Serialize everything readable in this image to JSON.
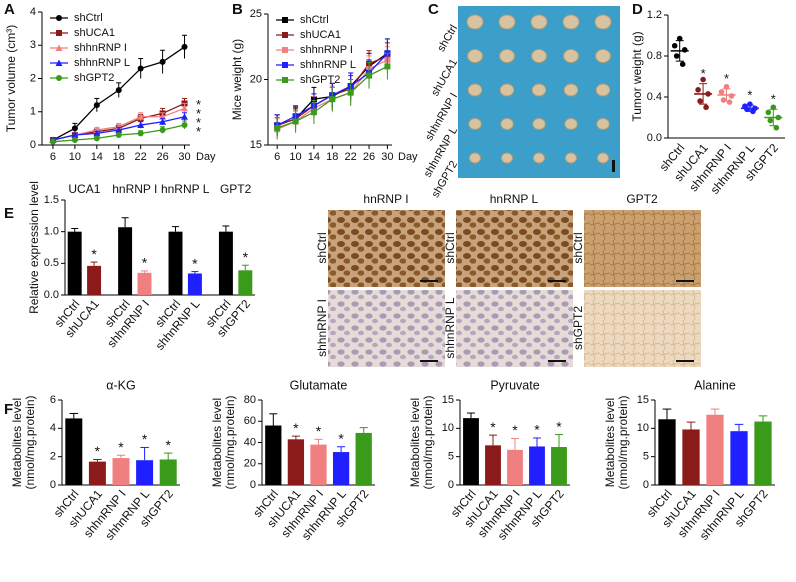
{
  "chart_data": [
    {
      "type": "line",
      "panel": "A",
      "ylabel": "Tumor volume (cm³)",
      "xlabel": "Day",
      "x": [
        6,
        10,
        14,
        18,
        22,
        26,
        30
      ],
      "xlim": [
        4,
        31
      ],
      "xticks": [
        6,
        10,
        14,
        18,
        22,
        26,
        30
      ],
      "ylim": [
        0,
        4
      ],
      "yticks": [
        0,
        1,
        2,
        3,
        4
      ],
      "series": [
        {
          "name": "shCtrl",
          "color": "#000000",
          "marker": "circle",
          "values": [
            0.15,
            0.5,
            1.2,
            1.65,
            2.3,
            2.5,
            2.95
          ],
          "errors": [
            0.05,
            0.15,
            0.2,
            0.22,
            0.3,
            0.35,
            0.35
          ]
        },
        {
          "name": "shUCA1",
          "color": "#8b1a1a",
          "marker": "square",
          "values": [
            0.15,
            0.3,
            0.4,
            0.5,
            0.8,
            0.95,
            1.25
          ],
          "errors": [
            0.03,
            0.06,
            0.08,
            0.1,
            0.12,
            0.15,
            0.15
          ]
        },
        {
          "name": "shhnRNP I",
          "color": "#f08080",
          "marker": "triangle",
          "values": [
            0.15,
            0.3,
            0.45,
            0.55,
            0.85,
            0.85,
            1.1
          ],
          "errors": [
            0.03,
            0.06,
            0.08,
            0.1,
            0.12,
            0.12,
            0.15
          ]
        },
        {
          "name": "shhnRNP L",
          "color": "#1f1fff",
          "marker": "triangle",
          "values": [
            0.15,
            0.3,
            0.35,
            0.45,
            0.6,
            0.7,
            0.85
          ],
          "errors": [
            0.03,
            0.05,
            0.06,
            0.08,
            0.1,
            0.1,
            0.12
          ]
        },
        {
          "name": "shGPT2",
          "color": "#3a9a1a",
          "marker": "circle",
          "values": [
            0.1,
            0.15,
            0.2,
            0.3,
            0.35,
            0.45,
            0.6
          ],
          "errors": [
            0.02,
            0.04,
            0.05,
            0.06,
            0.08,
            0.1,
            0.12
          ]
        }
      ],
      "annotations": [
        "*",
        "*",
        "*",
        "*"
      ]
    },
    {
      "type": "line",
      "panel": "B",
      "ylabel": "Mice weight (g)",
      "xlabel": "Day",
      "x": [
        6,
        10,
        14,
        18,
        22,
        26,
        30
      ],
      "xlim": [
        4,
        31
      ],
      "xticks": [
        6,
        10,
        14,
        18,
        22,
        26,
        30
      ],
      "ylim": [
        15,
        25
      ],
      "yticks": [
        15,
        20,
        25
      ],
      "series": [
        {
          "name": "shCtrl",
          "color": "#000000",
          "marker": "square",
          "values": [
            16.5,
            17,
            18.5,
            18.7,
            19.5,
            21,
            22
          ],
          "errors": [
            0.8,
            0.9,
            0.9,
            1,
            1,
            1,
            1.1
          ]
        },
        {
          "name": "shUCA1",
          "color": "#8b1a1a",
          "marker": "square",
          "values": [
            16.5,
            17,
            18,
            18.8,
            19.3,
            21.2,
            21.8
          ],
          "errors": [
            0.8,
            0.8,
            0.9,
            0.9,
            1,
            1,
            1
          ]
        },
        {
          "name": "shhnRNP I",
          "color": "#f08080",
          "marker": "square",
          "values": [
            16.2,
            16.8,
            17.8,
            18.5,
            19,
            20.8,
            21.5
          ],
          "errors": [
            0.8,
            0.9,
            0.9,
            1,
            1,
            1,
            1
          ]
        },
        {
          "name": "shhnRNP L",
          "color": "#1f1fff",
          "marker": "square",
          "values": [
            16.5,
            17.2,
            18,
            18.8,
            19.5,
            20.5,
            22
          ],
          "errors": [
            0.8,
            0.8,
            0.9,
            0.9,
            1,
            1,
            1.1
          ]
        },
        {
          "name": "shGPT2",
          "color": "#3a9a1a",
          "marker": "square",
          "values": [
            16.3,
            16.8,
            17.5,
            18.5,
            19,
            20.3,
            21
          ],
          "errors": [
            0.8,
            0.8,
            0.9,
            0.9,
            1,
            1,
            1
          ]
        }
      ]
    },
    {
      "type": "dot",
      "panel": "D",
      "ylabel": "Tumor weight (g)",
      "categories": [
        "shCtrl",
        "shUCA1",
        "shhnRNP I",
        "shhnRNP L",
        "shGPT2"
      ],
      "colors": [
        "#000000",
        "#8b1a1a",
        "#f08080",
        "#1f1fff",
        "#3a9a1a"
      ],
      "values": [
        0.85,
        0.43,
        0.42,
        0.29,
        0.2
      ],
      "errors": [
        0.1,
        0.1,
        0.06,
        0.03,
        0.08
      ],
      "points": [
        [
          0.97,
          0.9,
          0.86,
          0.8,
          0.72
        ],
        [
          0.57,
          0.47,
          0.43,
          0.36,
          0.3
        ],
        [
          0.5,
          0.45,
          0.41,
          0.37,
          0.35
        ],
        [
          0.33,
          0.31,
          0.29,
          0.28,
          0.26
        ],
        [
          0.3,
          0.25,
          0.2,
          0.17,
          0.1
        ]
      ],
      "significance": [
        null,
        "*",
        "*",
        "*",
        "*"
      ],
      "ylim": [
        0,
        1.2
      ],
      "yticks": [
        {
          "value": 0,
          "label": "0.0"
        },
        {
          "value": 0.4,
          "label": "0.4"
        },
        {
          "value": 0.8,
          "label": "0.8"
        },
        {
          "value": 1.2,
          "label": "1.2"
        }
      ]
    },
    {
      "type": "bar",
      "panel": "E",
      "ylabel": "Relative expression level",
      "groups": [
        "UCA1",
        "hnRNP I",
        "hnRNP L",
        "GPT2"
      ],
      "categories": [
        "shCtrl",
        "shUCA1",
        "shCtrl",
        "shhnRNP I",
        "shCtrl",
        "shhnRNP L",
        "shCtrl",
        "shGPT2"
      ],
      "colors": [
        "#000000",
        "#8b1a1a",
        "#000000",
        "#f08080",
        "#000000",
        "#1f1fff",
        "#000000",
        "#3a9a1a"
      ],
      "values": [
        1.0,
        0.46,
        1.07,
        0.35,
        1.0,
        0.34,
        1.0,
        0.39
      ],
      "errors": [
        0.05,
        0.06,
        0.15,
        0.03,
        0.08,
        0.03,
        0.09,
        0.08
      ],
      "significance": [
        null,
        "*",
        null,
        "*",
        null,
        "*",
        null,
        "*"
      ],
      "ylim": [
        0,
        1.5
      ],
      "yticks": [
        {
          "value": 0,
          "label": "0.0"
        },
        {
          "value": 0.5,
          "label": "0.5"
        },
        {
          "value": 1,
          "label": "1.0"
        },
        {
          "value": 1.5,
          "label": "1.5"
        }
      ]
    },
    {
      "type": "bar",
      "panel": "F",
      "title": "α-KG",
      "ylabel": [
        "Metabolites level",
        "(nmol/mg.protein)"
      ],
      "categories": [
        "shCtrl",
        "shUCA1",
        "shhnRNP I",
        "shhnRNP L",
        "shGPT2"
      ],
      "colors": [
        "#000000",
        "#8b1a1a",
        "#f08080",
        "#1f1fff",
        "#3a9a1a"
      ],
      "values": [
        4.7,
        1.65,
        1.9,
        1.75,
        1.8
      ],
      "errors": [
        0.35,
        0.15,
        0.2,
        0.9,
        0.45
      ],
      "significance": [
        null,
        "*",
        "*",
        "*",
        "*"
      ],
      "ylim": [
        0,
        6
      ],
      "yticks": [
        0,
        2,
        4,
        6
      ]
    },
    {
      "type": "bar",
      "title": "Glutamate",
      "ylabel": [
        "Metabolites level",
        "(nmol/mg.protein)"
      ],
      "categories": [
        "shCtrl",
        "shUCA1",
        "shhnRNP I",
        "shhnRNP L",
        "shGPT2"
      ],
      "colors": [
        "#000000",
        "#8b1a1a",
        "#f08080",
        "#1f1fff",
        "#3a9a1a"
      ],
      "values": [
        56,
        43,
        38,
        31,
        49
      ],
      "errors": [
        11,
        3,
        5,
        5,
        5
      ],
      "significance": [
        null,
        "*",
        "*",
        "*",
        null
      ],
      "ylim": [
        0,
        80
      ],
      "yticks": [
        0,
        20,
        40,
        60,
        80
      ]
    },
    {
      "type": "bar",
      "title": "Pyruvate",
      "ylabel": [
        "Metabolites level",
        "(nmol/mg.protein)"
      ],
      "categories": [
        "shCtrl",
        "shUCA1",
        "shhnRNP I",
        "shhnRNP L",
        "shGPT2"
      ],
      "colors": [
        "#000000",
        "#8b1a1a",
        "#f08080",
        "#1f1fff",
        "#3a9a1a"
      ],
      "values": [
        11.8,
        7,
        6.2,
        6.8,
        6.7
      ],
      "errors": [
        0.9,
        1.8,
        2,
        1.5,
        2.2
      ],
      "significance": [
        null,
        "*",
        "*",
        "*",
        "*"
      ],
      "ylim": [
        0,
        15
      ],
      "yticks": [
        0,
        5,
        10,
        15
      ]
    },
    {
      "type": "bar",
      "title": "Alanine",
      "ylabel": [
        "Metabolites level",
        "(nmol/mg.protein)"
      ],
      "categories": [
        "shCtrl",
        "shUCA1",
        "shhnRNP I",
        "shhnRNP L",
        "shGPT2"
      ],
      "colors": [
        "#000000",
        "#8b1a1a",
        "#f08080",
        "#1f1fff",
        "#3a9a1a"
      ],
      "values": [
        11.6,
        9.8,
        12.4,
        9.5,
        11.2
      ],
      "errors": [
        1.8,
        1.3,
        1,
        1.2,
        1
      ],
      "ylim": [
        0,
        15
      ],
      "yticks": [
        0,
        5,
        10,
        15
      ]
    }
  ],
  "photo": {
    "panel": "C",
    "labels": [
      "shCtrl",
      "shUCA1",
      "shhnRNP I",
      "shhnRNP L",
      "shGPT2"
    ]
  },
  "ihc": {
    "columns": [
      "hnRNP I",
      "hnRNP L",
      "GPT2"
    ],
    "rows": [
      [
        "shCtrl",
        "shhnRNP I"
      ],
      [
        "shCtrl",
        "shhnRNP L"
      ],
      [
        "shCtrl",
        "shGPT2"
      ]
    ]
  }
}
